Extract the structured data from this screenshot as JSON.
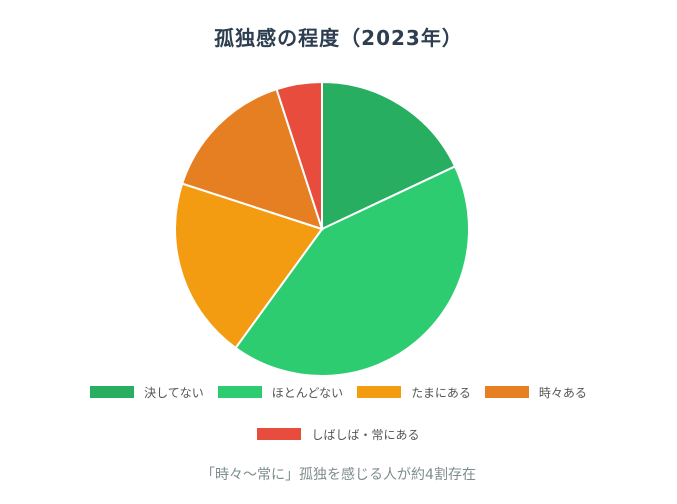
{
  "chart_data": {
    "type": "pie",
    "title": "孤独感の程度（2023年）",
    "categories": [
      "決してない",
      "ほとんどない",
      "たまにある",
      "時々ある",
      "しばしば・常にある"
    ],
    "values": [
      18,
      42,
      20,
      15,
      5
    ],
    "colors": [
      "#27ae60",
      "#2ecc71",
      "#f39c12",
      "#e67e22",
      "#e74c3c"
    ],
    "legend_position": "bottom"
  },
  "caption": "「時々〜常に」孤独を感じる人が約4割存在"
}
